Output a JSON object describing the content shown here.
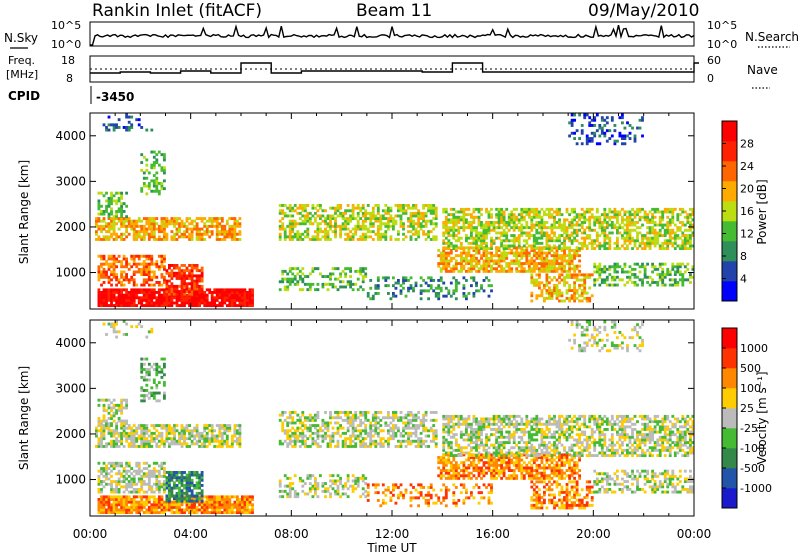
{
  "header": {
    "station": "Rankin Inlet (fitACF)",
    "beam": "Beam 11",
    "date": "09/May/2010"
  },
  "panels": {
    "nsky": {
      "left_label": "N.Sky",
      "right_label": "N.Search",
      "left_ticks": [
        "10^5",
        "10^0"
      ],
      "right_ticks": [
        "10^5",
        "10^0"
      ]
    },
    "freq": {
      "left_label_1": "Freq.",
      "left_label_2": "[MHz]",
      "left_ticks": [
        "18",
        "8"
      ],
      "right_label": "Nave",
      "right_ticks": [
        "60",
        "0"
      ]
    },
    "cpid": {
      "label": "CPID",
      "value": "-3450"
    }
  },
  "colors": {
    "power_scale": [
      "#0000ff",
      "#2244aa",
      "#2f8f5a",
      "#44bb33",
      "#bbdd11",
      "#ffaa00",
      "#ff6600",
      "#ff2200",
      "#ff0000"
    ],
    "velocity_scale": [
      "#1a1acc",
      "#2255aa",
      "#33884a",
      "#44bb33",
      "#bbbbbb",
      "#ffcc00",
      "#ff8800",
      "#ff3300",
      "#ff0000"
    ]
  },
  "chart_data": [
    {
      "type": "heatmap",
      "name": "power",
      "ylabel": "Slant Range [km]",
      "xlabel": "",
      "x_ticks": [
        "00:00",
        "04:00",
        "08:00",
        "12:00",
        "16:00",
        "20:00",
        "00:00"
      ],
      "y_ticks": [
        "1000",
        "2000",
        "3000",
        "4000"
      ],
      "ylim": [
        200,
        4500
      ],
      "colorbar": {
        "label": "Power [dB]",
        "ticks": [
          "28",
          "24",
          "20",
          "16",
          "12",
          "8",
          "4"
        ]
      }
    },
    {
      "type": "heatmap",
      "name": "velocity",
      "ylabel": "Slant Range [km]",
      "xlabel": "Time UT",
      "x_ticks": [
        "00:00",
        "04:00",
        "08:00",
        "12:00",
        "16:00",
        "20:00",
        "00:00"
      ],
      "y_ticks": [
        "1000",
        "2000",
        "3000",
        "4000"
      ],
      "ylim": [
        200,
        4500
      ],
      "colorbar": {
        "label": "Velocity [m s⁻¹]",
        "ticks": [
          "1000",
          "500",
          "100",
          "25",
          "-25",
          "-100",
          "-500",
          "-1000"
        ]
      }
    }
  ]
}
